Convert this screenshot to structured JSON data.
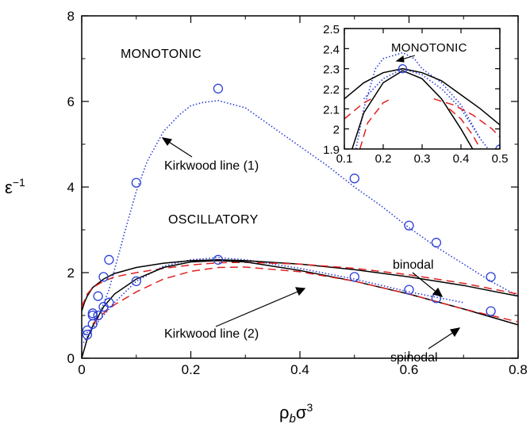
{
  "chart_data": [
    {
      "type": "line",
      "xlabel": "ρbσ3",
      "ylabel": "ε−1",
      "xlim": [
        0,
        0.8
      ],
      "ylim": [
        0,
        8
      ],
      "xticks": [
        "0",
        "0.2",
        "0.4",
        "0.6",
        "0.8"
      ],
      "yticks": [
        "0",
        "2",
        "4",
        "6",
        "8"
      ],
      "grid": false,
      "region_labels": [
        "MONOTONIC",
        "OSCILLATORY"
      ],
      "annotations": [
        "Kirkwood line (1)",
        "Kirkwood line (2)",
        "binodal",
        "spinodal"
      ],
      "series": [
        {
          "name": "Kirkwood line (1)",
          "style": "dotted",
          "color": "#2b3fd6",
          "x": [
            0,
            0.01,
            0.02,
            0.03,
            0.05,
            0.08,
            0.1,
            0.12,
            0.15,
            0.18,
            0.2,
            0.22,
            0.25,
            0.3,
            0.35,
            0.4,
            0.45,
            0.5,
            0.55,
            0.6,
            0.65,
            0.7,
            0.75,
            0.8
          ],
          "y": [
            0.5,
            0.6,
            0.75,
            0.95,
            1.6,
            3.0,
            3.9,
            4.6,
            5.3,
            5.7,
            5.9,
            5.97,
            6.02,
            5.85,
            5.4,
            4.95,
            4.5,
            4.0,
            3.55,
            3.05,
            2.6,
            2.2,
            1.8,
            1.45
          ]
        },
        {
          "name": "Kirkwood line (2)",
          "style": "dotted",
          "color": "#2b3fd6",
          "x": [
            0,
            0.01,
            0.02,
            0.03,
            0.04,
            0.06,
            0.08,
            0.1,
            0.15,
            0.2,
            0.25,
            0.3,
            0.35,
            0.4,
            0.5,
            0.6,
            0.7
          ],
          "y": [
            0.3,
            0.5,
            0.7,
            0.85,
            1.0,
            1.3,
            1.55,
            1.8,
            2.15,
            2.3,
            2.35,
            2.3,
            2.2,
            2.1,
            1.85,
            1.55,
            1.3
          ]
        },
        {
          "name": "binodal",
          "style": "solid",
          "color": "#000000",
          "x": [
            0,
            0.005,
            0.01,
            0.02,
            0.04,
            0.06,
            0.1,
            0.15,
            0.2,
            0.25,
            0.3,
            0.4,
            0.5,
            0.6,
            0.7,
            0.8
          ],
          "y": [
            1.1,
            1.3,
            1.45,
            1.65,
            1.85,
            1.98,
            2.12,
            2.22,
            2.28,
            2.3,
            2.28,
            2.2,
            2.07,
            1.9,
            1.7,
            1.45
          ]
        },
        {
          "name": "binodal (dashed)",
          "style": "dashed",
          "color": "#e02020",
          "x": [
            0,
            0.005,
            0.01,
            0.02,
            0.04,
            0.06,
            0.1,
            0.15,
            0.2,
            0.25,
            0.3,
            0.4,
            0.5,
            0.6,
            0.7,
            0.8
          ],
          "y": [
            1.2,
            1.35,
            1.5,
            1.65,
            1.8,
            1.9,
            2.0,
            2.1,
            2.18,
            2.23,
            2.24,
            2.2,
            2.1,
            1.95,
            1.75,
            1.5
          ]
        },
        {
          "name": "spinodal",
          "style": "solid",
          "color": "#000000",
          "x": [
            0,
            0.01,
            0.02,
            0.04,
            0.06,
            0.1,
            0.15,
            0.2,
            0.25,
            0.3,
            0.4,
            0.5,
            0.6,
            0.7,
            0.8
          ],
          "y": [
            0,
            0.45,
            0.75,
            1.2,
            1.5,
            1.85,
            2.12,
            2.25,
            2.28,
            2.25,
            2.05,
            1.8,
            1.5,
            1.15,
            0.78
          ]
        },
        {
          "name": "spinodal (dashed)",
          "style": "dashed",
          "color": "#e02020",
          "x": [
            0.02,
            0.04,
            0.06,
            0.1,
            0.15,
            0.2,
            0.25,
            0.3,
            0.4,
            0.5,
            0.6,
            0.7,
            0.8
          ],
          "y": [
            0.8,
            1.05,
            1.25,
            1.55,
            1.85,
            2.03,
            2.12,
            2.13,
            2.02,
            1.8,
            1.5,
            1.15,
            0.85
          ]
        },
        {
          "name": "simulation points",
          "style": "markers",
          "marker": "open-circle",
          "color": "#2b3fd6",
          "x": [
            0.01,
            0.01,
            0.02,
            0.02,
            0.02,
            0.03,
            0.03,
            0.04,
            0.04,
            0.05,
            0.05,
            0.1,
            0.1,
            0.25,
            0.25,
            0.5,
            0.5,
            0.6,
            0.6,
            0.65,
            0.65,
            0.75,
            0.75
          ],
          "y": [
            0.55,
            0.65,
            0.8,
            1.05,
            1.0,
            1.45,
            1.0,
            1.9,
            1.2,
            2.3,
            1.3,
            4.1,
            1.8,
            6.3,
            2.3,
            4.2,
            1.9,
            3.1,
            1.6,
            2.7,
            1.4,
            1.9,
            1.1
          ]
        }
      ]
    },
    {
      "type": "line",
      "xlim": [
        0.1,
        0.5
      ],
      "ylim": [
        1.9,
        2.5
      ],
      "xticks": [
        "0.1",
        "0.2",
        "0.3",
        "0.4",
        "0.5"
      ],
      "yticks": [
        "1.9",
        "2",
        "2.1",
        "2.2",
        "2.3",
        "2.4",
        "2.5"
      ],
      "region_labels": [
        "MONOTONIC"
      ],
      "series": [
        {
          "name": "Kirkwood (1)",
          "style": "dotted",
          "color": "#2b3fd6",
          "x": [
            0.13,
            0.15,
            0.18,
            0.2,
            0.25,
            0.28,
            0.3,
            0.35,
            0.4,
            0.45
          ],
          "y": [
            1.9,
            2.1,
            2.3,
            2.35,
            2.38,
            2.35,
            2.3,
            2.23,
            2.12,
            1.95
          ]
        },
        {
          "name": "Kirkwood (2)",
          "style": "dotted",
          "color": "#2b3fd6",
          "x": [
            0.15,
            0.2,
            0.25,
            0.3,
            0.35,
            0.4,
            0.45,
            0.47
          ],
          "y": [
            2.15,
            2.25,
            2.3,
            2.27,
            2.2,
            2.1,
            1.95,
            1.9
          ]
        },
        {
          "name": "binodal (outer)",
          "style": "solid",
          "color": "#000000",
          "x": [
            0.1,
            0.15,
            0.2,
            0.25,
            0.3,
            0.35,
            0.4,
            0.45,
            0.5
          ],
          "y": [
            2.15,
            2.23,
            2.28,
            2.3,
            2.28,
            2.24,
            2.17,
            2.1,
            2.02
          ]
        },
        {
          "name": "spinodal (inner)",
          "style": "solid",
          "color": "#000000",
          "x": [
            0.12,
            0.15,
            0.2,
            0.25,
            0.3,
            0.35,
            0.4,
            0.43
          ],
          "y": [
            1.9,
            2.08,
            2.23,
            2.29,
            2.25,
            2.15,
            2.0,
            1.9
          ]
        },
        {
          "name": "binodal (dashed)",
          "style": "dashed",
          "color": "#e02020",
          "x": [
            0.1,
            0.15,
            0.18
          ],
          "y": [
            2.05,
            2.13,
            2.16
          ]
        },
        {
          "name": "binodal (dashed, right)",
          "style": "dashed",
          "color": "#e02020",
          "x": [
            0.33,
            0.38,
            0.43,
            0.48,
            0.5
          ],
          "y": [
            2.15,
            2.12,
            2.07,
            2.0,
            1.96
          ]
        },
        {
          "name": "spinodal (dashed)",
          "style": "dashed",
          "color": "#e02020",
          "x": [
            0.14,
            0.16,
            0.2,
            0.22
          ],
          "y": [
            1.9,
            2.03,
            2.13,
            2.15
          ]
        },
        {
          "name": "spinodal (dashed, right)",
          "style": "dashed",
          "color": "#e02020",
          "x": [
            0.37,
            0.4,
            0.43,
            0.45
          ],
          "y": [
            2.1,
            2.05,
            1.97,
            1.9
          ]
        },
        {
          "name": "simulation points",
          "style": "markers",
          "marker": "open-circle",
          "color": "#2b3fd6",
          "x": [
            0.25,
            0.5
          ],
          "y": [
            2.3,
            1.9
          ]
        }
      ]
    }
  ]
}
